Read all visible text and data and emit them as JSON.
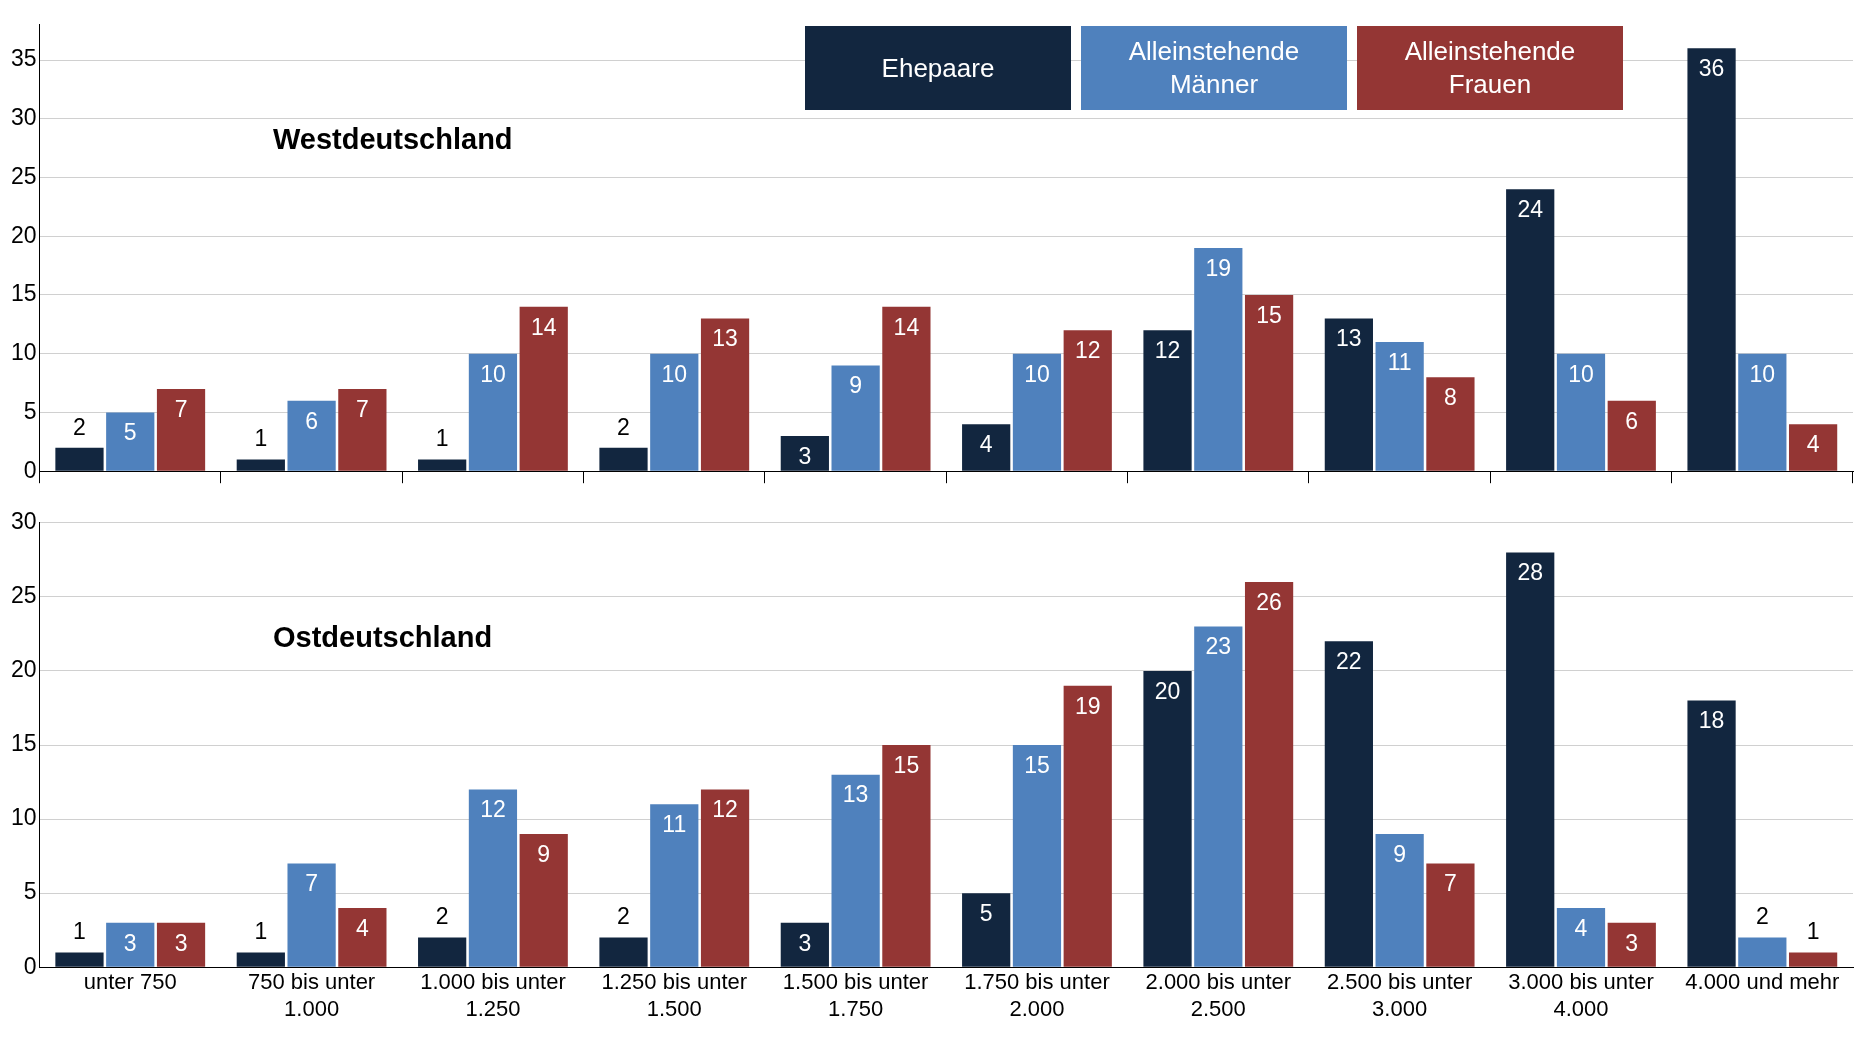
{
  "chart_data": [
    {
      "type": "bar",
      "title": "Westdeutschland",
      "categories": [
        null,
        null,
        null,
        null,
        null,
        null,
        null,
        null,
        null,
        null
      ],
      "series": [
        {
          "name": "Ehepaare",
          "color": "#12263f",
          "values": [
            2,
            1,
            1,
            2,
            3,
            4,
            12,
            13,
            24,
            36
          ]
        },
        {
          "name": "Alleinstehende Männer",
          "color": "#4f81bd",
          "values": [
            5,
            6,
            10,
            10,
            9,
            10,
            19,
            11,
            10,
            10
          ]
        },
        {
          "name": "Alleinstehende Frauen",
          "color": "#943634",
          "values": [
            7,
            7,
            14,
            13,
            14,
            12,
            15,
            8,
            6,
            4
          ]
        }
      ],
      "ylim": [
        0,
        38
      ],
      "yticks": [
        0,
        5,
        10,
        15,
        20,
        25,
        30,
        35
      ],
      "grid": "y",
      "legend": "top right",
      "tick_labels": "y",
      "data_labels": true
    },
    {
      "type": "bar",
      "title": "Ostdeutschland",
      "categories": [
        "unter 750",
        "750 bis unter 1.000",
        "1.000 bis unter 1.250",
        "1.250 bis unter 1.500",
        "1.500 bis unter 1.750",
        "1.750 bis unter 2.000",
        "2.000 bis unter 2.500",
        "2.500 bis unter 3.000",
        "3.000 bis unter 4.000",
        "4.000 und mehr"
      ],
      "series": [
        {
          "color": "#12263f",
          "values": [
            1,
            1,
            2,
            2,
            3,
            5,
            20,
            22,
            28,
            18
          ]
        },
        {
          "color": "#4f81bd",
          "values": [
            3,
            7,
            12,
            11,
            13,
            15,
            23,
            9,
            4,
            2
          ]
        },
        {
          "color": "#943634",
          "values": [
            3,
            4,
            9,
            12,
            15,
            19,
            26,
            7,
            3,
            1
          ]
        }
      ],
      "ylim": [
        0,
        30
      ],
      "yticks": [
        0,
        5,
        10,
        15,
        20,
        25,
        30
      ],
      "grid": "y",
      "data_labels": true
    }
  ]
}
